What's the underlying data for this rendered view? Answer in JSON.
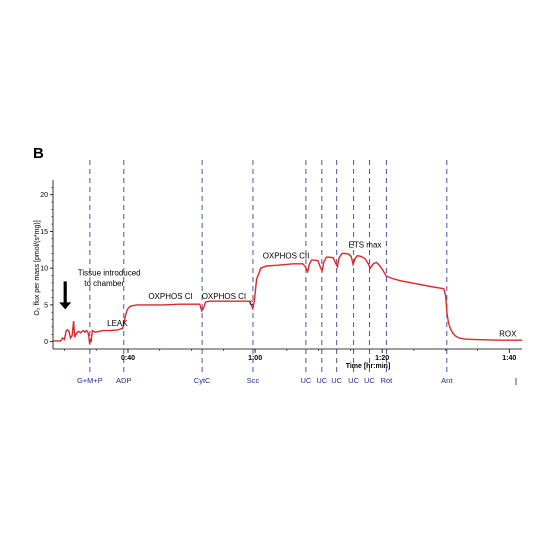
{
  "panel_label": "B",
  "chart_data": {
    "type": "line",
    "xlabel": "Time [hr:min]",
    "ylabel": "O₂ flux per mass [pmol/(s*mg)]",
    "xlim": [
      0.47,
      1.7
    ],
    "ylim": [
      -1,
      22
    ],
    "grid": false,
    "x_ticks": [
      {
        "value": 0.6667,
        "label": "0:40"
      },
      {
        "value": 1.0,
        "label": "1:00"
      },
      {
        "value": 1.3333,
        "label": "1:20"
      },
      {
        "value": 1.6667,
        "label": "1:40"
      }
    ],
    "y_ticks": [
      {
        "value": 0,
        "label": "0"
      },
      {
        "value": 5,
        "label": "5"
      },
      {
        "value": 10,
        "label": "10"
      },
      {
        "value": 15,
        "label": "15"
      },
      {
        "value": 20,
        "label": "20"
      }
    ],
    "events": [
      {
        "x": 0.5667,
        "label": "G+M+P"
      },
      {
        "x": 0.6556,
        "label": "ADP"
      },
      {
        "x": 0.8611,
        "label": "CytC"
      },
      {
        "x": 0.9944,
        "label": "Scc"
      },
      {
        "x": 1.1333,
        "label": "UC"
      },
      {
        "x": 1.175,
        "label": "UC"
      },
      {
        "x": 1.2139,
        "label": "UC"
      },
      {
        "x": 1.2583,
        "label": "UC"
      },
      {
        "x": 1.3,
        "label": "UC"
      },
      {
        "x": 1.3444,
        "label": "Rot"
      },
      {
        "x": 1.5028,
        "label": "Ant"
      }
    ],
    "annotations": [
      {
        "text": "Tissue introduced",
        "x": 0.535,
        "y": 9.0
      },
      {
        "text": "to chamber",
        "x": 0.552,
        "y": 7.6
      },
      {
        "text": "LEAK",
        "x": 0.612,
        "y": 2.1
      },
      {
        "text": "OXPHOS CI",
        "x": 0.72,
        "y": 5.8
      },
      {
        "text": "OXPHOS CI",
        "x": 0.86,
        "y": 5.8
      },
      {
        "text": "c",
        "x": 0.985,
        "y": 5.0
      },
      {
        "text": "OXPHOS CII",
        "x": 1.02,
        "y": 11.3
      },
      {
        "text": "ETS max",
        "x": 1.245,
        "y": 12.8
      },
      {
        "text": "ROX",
        "x": 1.64,
        "y": 0.7
      }
    ],
    "arrow": {
      "x": 0.502,
      "y_start": 8.2,
      "y_end": 4.4
    },
    "series": [
      {
        "color": "#e0262b",
        "x": [
          0.47,
          0.478,
          0.486,
          0.49,
          0.495,
          0.5,
          0.505,
          0.508,
          0.512,
          0.516,
          0.52,
          0.524,
          0.527,
          0.53,
          0.534,
          0.538,
          0.542,
          0.546,
          0.55,
          0.554,
          0.558,
          0.562,
          0.564,
          0.566,
          0.568,
          0.57,
          0.573,
          0.576,
          0.58,
          0.59,
          0.6,
          0.62,
          0.64,
          0.652,
          0.656,
          0.66,
          0.665,
          0.672,
          0.68,
          0.69,
          0.7,
          0.72,
          0.76,
          0.8,
          0.84,
          0.855,
          0.86,
          0.865,
          0.87,
          0.88,
          0.9,
          0.95,
          0.985,
          0.99,
          0.994,
          0.998,
          1.004,
          1.015,
          1.03,
          1.06,
          1.1,
          1.125,
          1.132,
          1.138,
          1.142,
          1.148,
          1.155,
          1.165,
          1.172,
          1.176,
          1.18,
          1.187,
          1.197,
          1.205,
          1.212,
          1.216,
          1.22,
          1.228,
          1.236,
          1.245,
          1.252,
          1.257,
          1.262,
          1.268,
          1.278,
          1.288,
          1.297,
          1.302,
          1.31,
          1.318,
          1.326,
          1.334,
          1.34,
          1.344,
          1.35,
          1.36,
          1.38,
          1.42,
          1.46,
          1.495,
          1.5,
          1.503,
          1.507,
          1.512,
          1.518,
          1.525,
          1.535,
          1.55,
          1.57,
          1.6,
          1.65,
          1.7
        ],
        "y": [
          0.1,
          0.1,
          0.1,
          0.1,
          0.5,
          0.3,
          1.5,
          1.6,
          1.4,
          0.5,
          0.8,
          2.8,
          0.6,
          1.0,
          1.3,
          1.4,
          1.2,
          1.4,
          1.5,
          1.3,
          1.5,
          1.2,
          0.8,
          -0.3,
          0.4,
          -0.1,
          1.5,
          1.4,
          1.3,
          1.4,
          1.5,
          1.5,
          1.6,
          1.8,
          2.5,
          3.5,
          4.4,
          4.8,
          4.9,
          5.0,
          5.0,
          5.0,
          5.0,
          5.1,
          5.1,
          5.1,
          4.2,
          4.6,
          5.4,
          5.5,
          5.5,
          5.5,
          5.5,
          5.0,
          4.5,
          5.5,
          8.5,
          10.0,
          10.3,
          10.4,
          10.6,
          10.6,
          10.2,
          9.5,
          10.5,
          11.1,
          11.1,
          11.0,
          10.0,
          9.7,
          10.8,
          11.5,
          11.5,
          11.4,
          10.6,
          10.2,
          11.4,
          12.0,
          12.0,
          11.9,
          11.6,
          10.5,
          11.3,
          11.7,
          11.6,
          11.3,
          10.6,
          10.0,
          10.6,
          10.8,
          10.4,
          9.8,
          9.3,
          8.9,
          8.8,
          8.6,
          8.3,
          7.9,
          7.5,
          7.2,
          6.2,
          4.0,
          2.6,
          1.8,
          1.2,
          0.8,
          0.5,
          0.35,
          0.3,
          0.25,
          0.2,
          0.2
        ]
      }
    ]
  }
}
